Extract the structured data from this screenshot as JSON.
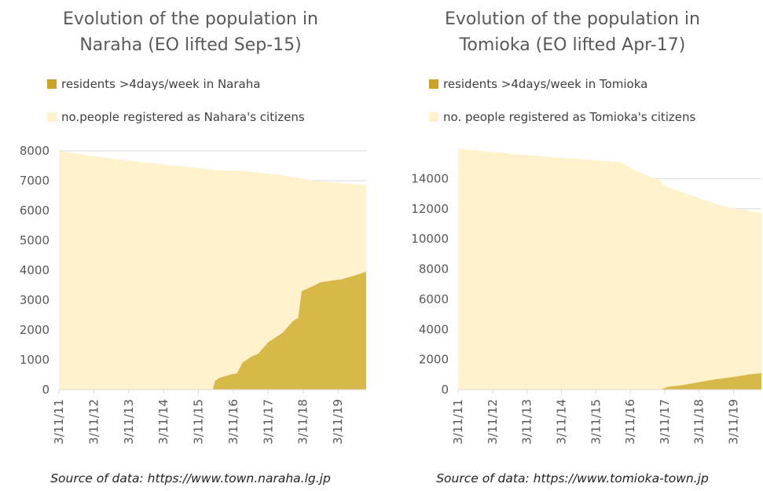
{
  "chart_data": [
    {
      "type": "area",
      "title": "Evolution of the population in Naraha (EO lifted Sep-15)",
      "title_lines": [
        "Evolution of the population in",
        "Naraha (EO lifted Sep-15)"
      ],
      "xlabel": "",
      "ylabel": "",
      "ylim": [
        0,
        8000
      ],
      "yticks": [
        0,
        1000,
        2000,
        3000,
        4000,
        5000,
        6000,
        7000,
        8000
      ],
      "xlim": [
        2011.19,
        2020.0
      ],
      "xticks": [
        {
          "label": "3/11/11",
          "x": 2011.19
        },
        {
          "label": "3/11/12",
          "x": 2012.19
        },
        {
          "label": "3/11/13",
          "x": 2013.19
        },
        {
          "label": "3/11/14",
          "x": 2014.19
        },
        {
          "label": "3/11/15",
          "x": 2015.19
        },
        {
          "label": "3/11/16",
          "x": 2016.19
        },
        {
          "label": "3/11/17",
          "x": 2017.19
        },
        {
          "label": "3/11/18",
          "x": 2018.19
        },
        {
          "label": "3/11/19",
          "x": 2019.19
        }
      ],
      "grid": true,
      "legend_position": "top",
      "series": [
        {
          "name": "no.people registered as Nahara's citizens",
          "color": "#fff2cc",
          "x": [
            2011.19,
            2012.0,
            2013.0,
            2014.0,
            2015.0,
            2015.7,
            2016.5,
            2017.0,
            2017.5,
            2018.0,
            2018.5,
            2019.0,
            2019.5,
            2020.0
          ],
          "y": [
            8000,
            7850,
            7700,
            7570,
            7450,
            7350,
            7330,
            7260,
            7200,
            7100,
            7000,
            6950,
            6900,
            6850
          ]
        },
        {
          "name": "residents >4days/week in Naraha",
          "color": "#d9b84a",
          "x": [
            2011.19,
            2015.6,
            2015.67,
            2015.8,
            2016.1,
            2016.3,
            2016.45,
            2016.7,
            2016.9,
            2017.2,
            2017.6,
            2017.9,
            2018.05,
            2018.15,
            2018.35,
            2018.7,
            2019.0,
            2019.3,
            2019.6,
            2020.0
          ],
          "y": [
            0,
            0,
            300,
            400,
            500,
            550,
            900,
            1100,
            1200,
            1600,
            1900,
            2300,
            2400,
            3300,
            3400,
            3600,
            3650,
            3700,
            3800,
            3950
          ]
        }
      ],
      "source": "Source of data: https://www.town.naraha.lg.jp"
    },
    {
      "type": "area",
      "title": "Evolution of the population in Tomioka (EO lifted Apr-17)",
      "title_lines": [
        "Evolution of the population in",
        "Tomioka (EO lifted Apr-17)"
      ],
      "xlabel": "",
      "ylabel": "",
      "ylim": [
        0,
        16000
      ],
      "yticks": [
        0,
        2000,
        4000,
        6000,
        8000,
        10000,
        12000,
        14000
      ],
      "xlim": [
        2011.19,
        2020.0
      ],
      "xticks": [
        {
          "label": "3/11/11",
          "x": 2011.19
        },
        {
          "label": "3/11/12",
          "x": 2012.19
        },
        {
          "label": "3/11/13",
          "x": 2013.19
        },
        {
          "label": "3/11/14",
          "x": 2014.19
        },
        {
          "label": "3/11/15",
          "x": 2015.19
        },
        {
          "label": "3/11/16",
          "x": 2016.19
        },
        {
          "label": "3/11/17",
          "x": 2017.19
        },
        {
          "label": "3/11/18",
          "x": 2018.19
        },
        {
          "label": "3/11/19",
          "x": 2019.19
        }
      ],
      "grid": true,
      "legend_position": "top",
      "series": [
        {
          "name": "no. people registered as Tomioka's citizens",
          "color": "#fff2cc",
          "x": [
            2011.19,
            2012.0,
            2013.0,
            2014.0,
            2015.0,
            2015.9,
            2016.3,
            2016.8,
            2017.05,
            2017.2,
            2017.7,
            2018.2,
            2018.7,
            2019.2,
            2019.6,
            2020.0
          ],
          "y": [
            16000,
            15800,
            15600,
            15400,
            15250,
            15100,
            14600,
            14100,
            13900,
            13500,
            13100,
            12700,
            12300,
            12000,
            11900,
            11700
          ]
        },
        {
          "name": "residents >4days/week in Tomioka",
          "color": "#d9b84a",
          "x": [
            2011.19,
            2017.05,
            2017.3,
            2017.7,
            2018.2,
            2018.7,
            2019.2,
            2019.6,
            2020.0
          ],
          "y": [
            0,
            0,
            200,
            300,
            500,
            700,
            850,
            1000,
            1100
          ]
        }
      ],
      "source": "Source of data: https://www.tomioka-town.jp"
    }
  ]
}
